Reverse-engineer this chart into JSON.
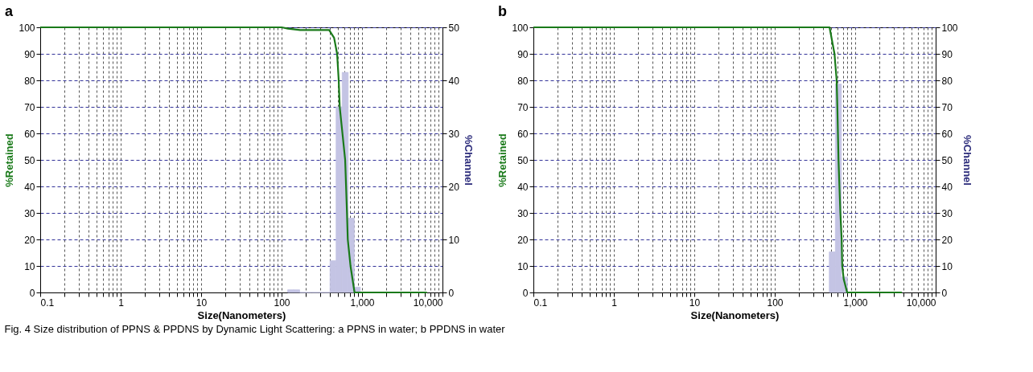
{
  "chart_data": [
    {
      "type": "line",
      "title": "a",
      "xlabel": "Size(Nanometers)",
      "ylabel": "%Retained",
      "y2label": "%Channel",
      "log": "x",
      "grid": true,
      "annotations": [
        "Fig. 4  Size distribution of PPNS & PPDNS by Dynamic Light Scattering: a PPNS in water; b PPDNS in water"
      ],
      "xlim": [
        0.1,
        10000
      ],
      "ylim": [
        0,
        100
      ],
      "y2lim": [
        0,
        50
      ],
      "xticks": [
        0.1,
        {
          "value": 0.2,
          "label": null
        },
        {
          "value": 0.3,
          "label": null
        },
        {
          "value": 0.4,
          "label": null
        },
        {
          "value": 0.5,
          "label": null
        },
        {
          "value": 0.6,
          "label": null
        },
        {
          "value": 0.7,
          "label": null
        },
        {
          "value": 0.8,
          "label": null
        },
        {
          "value": 0.9,
          "label": null
        },
        1,
        {
          "value": 2,
          "label": null
        },
        {
          "value": 3,
          "label": null
        },
        {
          "value": 4,
          "label": null
        },
        {
          "value": 5,
          "label": null
        },
        {
          "value": 6,
          "label": null
        },
        {
          "value": 7,
          "label": null
        },
        {
          "value": 8,
          "label": null
        },
        {
          "value": 9,
          "label": null
        },
        10,
        {
          "value": 20,
          "label": null
        },
        {
          "value": 30,
          "label": null
        },
        {
          "value": 40,
          "label": null
        },
        {
          "value": 50,
          "label": null
        },
        {
          "value": 60,
          "label": null
        },
        {
          "value": 70,
          "label": null
        },
        {
          "value": 80,
          "label": null
        },
        {
          "value": 90,
          "label": null
        },
        100,
        {
          "value": 200,
          "label": null
        },
        {
          "value": 300,
          "label": null
        },
        {
          "value": 400,
          "label": null
        },
        {
          "value": 500,
          "label": null
        },
        {
          "value": 600,
          "label": null
        },
        {
          "value": 700,
          "label": null
        },
        {
          "value": 800,
          "label": null
        },
        {
          "value": 900,
          "label": null
        },
        {
          "value": 1000,
          "label": "1,000"
        },
        {
          "value": 2000,
          "label": null
        },
        {
          "value": 3000,
          "label": null
        },
        {
          "value": 4000,
          "label": null
        },
        {
          "value": 5000,
          "label": null
        },
        {
          "value": 6000,
          "label": null
        },
        {
          "value": 7000,
          "label": null
        },
        {
          "value": 8000,
          "label": null
        },
        {
          "value": 9000,
          "label": null
        },
        {
          "value": 10000,
          "label": "10,000"
        }
      ],
      "yticks": [
        0,
        10,
        20,
        30,
        40,
        50,
        60,
        70,
        80,
        90,
        100
      ],
      "y2ticks": [
        0,
        10,
        20,
        30,
        40,
        50
      ],
      "series": [
        {
          "type": "histogram",
          "axis": "y2",
          "color": "#c4c4e4",
          "bins": [
            119,
            141,
            168,
            200,
            238,
            283,
            336,
            400,
            476,
            566,
            673,
            800,
            951
          ],
          "values": [
            0.5,
            0.5,
            0,
            0,
            0,
            0,
            0,
            6,
            35,
            41.5,
            14,
            1
          ]
        },
        {
          "color": "#1a7a1a",
          "x": [
            0.1,
            100,
            120,
            170,
            390,
            450,
            490,
            513,
            528,
            617,
            650,
            665,
            719,
            807,
            6400
          ],
          "values": [
            100,
            100,
            99.5,
            99,
            99,
            96,
            90,
            80,
            70,
            50,
            30,
            20,
            10,
            0,
            0
          ]
        }
      ]
    },
    {
      "type": "line",
      "title": "b",
      "xlabel": "Size(Nanometers)",
      "ylabel": "%Retained",
      "y2label": "%Channel",
      "log": "x",
      "grid": true,
      "xlim": [
        0.1,
        10000
      ],
      "ylim": [
        0,
        100
      ],
      "y2lim": [
        0,
        100
      ],
      "xticks": [
        0.1,
        {
          "value": 0.2,
          "label": null
        },
        {
          "value": 0.3,
          "label": null
        },
        {
          "value": 0.4,
          "label": null
        },
        {
          "value": 0.5,
          "label": null
        },
        {
          "value": 0.6,
          "label": null
        },
        {
          "value": 0.7,
          "label": null
        },
        {
          "value": 0.8,
          "label": null
        },
        {
          "value": 0.9,
          "label": null
        },
        1,
        {
          "value": 2,
          "label": null
        },
        {
          "value": 3,
          "label": null
        },
        {
          "value": 4,
          "label": null
        },
        {
          "value": 5,
          "label": null
        },
        {
          "value": 6,
          "label": null
        },
        {
          "value": 7,
          "label": null
        },
        {
          "value": 8,
          "label": null
        },
        {
          "value": 9,
          "label": null
        },
        10,
        {
          "value": 20,
          "label": null
        },
        {
          "value": 30,
          "label": null
        },
        {
          "value": 40,
          "label": null
        },
        {
          "value": 50,
          "label": null
        },
        {
          "value": 60,
          "label": null
        },
        {
          "value": 70,
          "label": null
        },
        {
          "value": 80,
          "label": null
        },
        {
          "value": 90,
          "label": null
        },
        100,
        {
          "value": 200,
          "label": null
        },
        {
          "value": 300,
          "label": null
        },
        {
          "value": 400,
          "label": null
        },
        {
          "value": 500,
          "label": null
        },
        {
          "value": 600,
          "label": null
        },
        {
          "value": 700,
          "label": null
        },
        {
          "value": 800,
          "label": null
        },
        {
          "value": 900,
          "label": null
        },
        {
          "value": 1000,
          "label": "1,000"
        },
        {
          "value": 2000,
          "label": null
        },
        {
          "value": 3000,
          "label": null
        },
        {
          "value": 4000,
          "label": null
        },
        {
          "value": 5000,
          "label": null
        },
        {
          "value": 6000,
          "label": null
        },
        {
          "value": 7000,
          "label": null
        },
        {
          "value": 8000,
          "label": null
        },
        {
          "value": 9000,
          "label": null
        },
        {
          "value": 10000,
          "label": "10,000"
        }
      ],
      "yticks": [
        0,
        10,
        20,
        30,
        40,
        50,
        60,
        70,
        80,
        90,
        100
      ],
      "y2ticks": [
        0,
        10,
        20,
        30,
        40,
        50,
        60,
        70,
        80,
        90,
        100
      ],
      "series": [
        {
          "type": "histogram",
          "axis": "y2",
          "color": "#c4c4e4",
          "bins": [
            476,
            566,
            673,
            800
          ],
          "values": [
            15.3,
            78.6,
            5.8
          ]
        },
        {
          "color": "#1a7a1a",
          "x": [
            0.1,
            480,
            553,
            588,
            600,
            620,
            654,
            679,
            690,
            720,
            794,
            3800
          ],
          "values": [
            100,
            100,
            90,
            80,
            70,
            50,
            30,
            20,
            10,
            5,
            0,
            0
          ]
        }
      ]
    }
  ]
}
